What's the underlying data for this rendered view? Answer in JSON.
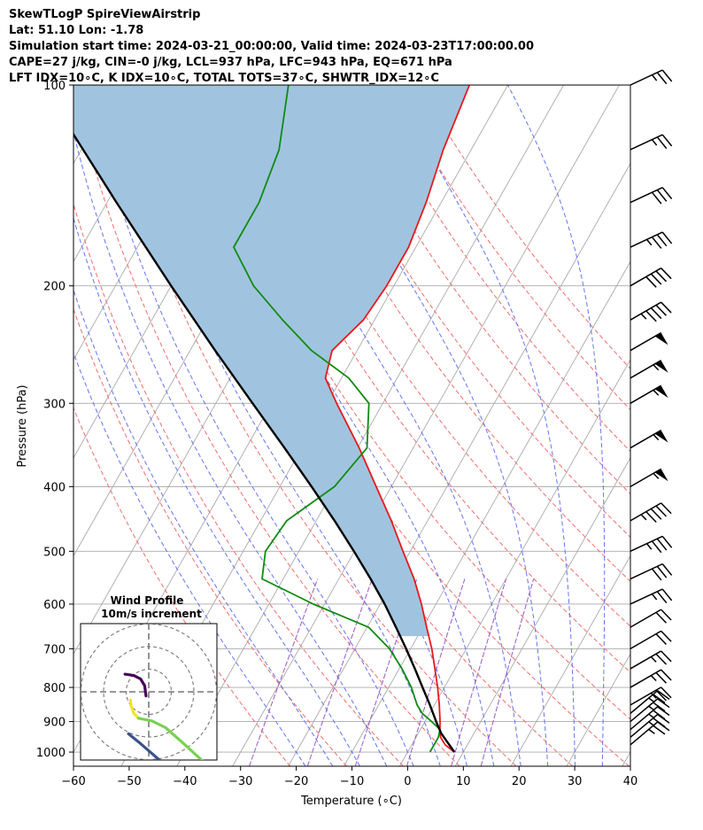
{
  "chart_data": {
    "type": "line",
    "title_lines": [
      "SkewTLogP SpireViewAirstrip",
      "Lat: 51.10   Lon: -1.78",
      "Simulation start time: 2024-03-21_00:00:00, Valid time: 2024-03-23T17:00:00.00",
      "CAPE=27 j/kg, CIN=-0 j/kg, LCL=937 hPa, LFC=943 hPa, EQ=671 hPa",
      "LFT IDX=10∘C, K IDX=10∘C, TOTAL TOTS=37∘C, SHWTR_IDX=12∘C"
    ],
    "xlabel": "Temperature (∘C)",
    "ylabel": "Pressure (hPa)",
    "xlim": [
      -60,
      40
    ],
    "ylim": [
      1050,
      100
    ],
    "x_ticks": [
      "−60",
      "−50",
      "−40",
      "−30",
      "−20",
      "−10",
      "0",
      "10",
      "20",
      "30",
      "40"
    ],
    "x_tick_values": [
      -60,
      -50,
      -40,
      -30,
      -20,
      -10,
      0,
      10,
      20,
      30,
      40
    ],
    "y_ticks": [
      "100",
      "200",
      "300",
      "400",
      "500",
      "600",
      "700",
      "800",
      "900",
      "1000"
    ],
    "y_tick_values": [
      100,
      200,
      300,
      400,
      500,
      600,
      700,
      800,
      900,
      1000
    ],
    "skew_c_per_log_decade": 68,
    "series": [
      {
        "name": "Temperature",
        "color": "#e8191c",
        "pressure": [
          1000,
          975,
          950,
          925,
          900,
          850,
          800,
          750,
          700,
          650,
          600,
          550,
          500,
          450,
          400,
          350,
          300,
          275,
          250,
          225,
          200,
          175,
          150,
          125,
          100
        ],
        "temperature": [
          8.4,
          6.0,
          4.4,
          3.5,
          2.7,
          0.9,
          -1.2,
          -3.6,
          -6.2,
          -9.3,
          -12.6,
          -16.5,
          -21.3,
          -26.5,
          -32.7,
          -39.7,
          -48.3,
          -52.9,
          -54.5,
          -52.0,
          -51.3,
          -51.3,
          -52.7,
          -55.0,
          -56.9
        ]
      },
      {
        "name": "Dewpoint",
        "color": "#118a11",
        "pressure": [
          1000,
          975,
          950,
          925,
          900,
          875,
          850,
          800,
          750,
          700,
          650,
          600,
          550,
          500,
          450,
          400,
          350,
          300,
          275,
          250,
          225,
          200,
          175,
          150,
          125,
          100
        ],
        "temperature": [
          4.0,
          4.0,
          4.0,
          3.5,
          1.2,
          -1.3,
          -3.1,
          -5.9,
          -9.5,
          -13.8,
          -19.7,
          -32.0,
          -43.8,
          -46.0,
          -45.3,
          -40.2,
          -38.3,
          -42.5,
          -48.7,
          -58.2,
          -66.5,
          -75.2,
          -82.7,
          -82.7,
          -84.5,
          -89.4
        ]
      },
      {
        "name": "Parcel",
        "color": "#000000",
        "pressure": [
          1000,
          950,
          937,
          900,
          850,
          800,
          750,
          700,
          650,
          600,
          550,
          500,
          450,
          400,
          350,
          300,
          250,
          200,
          150,
          100
        ],
        "temperature": [
          8.4,
          5.0,
          4.1,
          2.0,
          -0.8,
          -3.9,
          -7.2,
          -10.8,
          -14.8,
          -19.2,
          -24.3,
          -30.1,
          -36.7,
          -44.3,
          -53.1,
          -63.4,
          -75.5,
          -90.0,
          -108.3,
          -133.6
        ]
      }
    ],
    "cape_fill_color": "#a0c4df",
    "reference_lines": {
      "isotherms_c": [
        -150,
        -140,
        -130,
        -120,
        -110,
        -100,
        -90,
        -80,
        -70,
        -60,
        -50,
        -40,
        -30,
        -20,
        -10,
        0,
        10,
        20,
        30,
        40
      ],
      "dry_adiabats_theta_k": [
        250,
        260,
        270,
        280,
        290,
        300,
        310,
        320,
        330,
        340,
        350,
        360,
        370,
        380,
        390,
        400
      ],
      "moist_adiabats_start_c": [
        -20,
        -15,
        -10,
        -5,
        0,
        5,
        10,
        15,
        20,
        25,
        30,
        35
      ],
      "isotherm_color": "#aaaaaa",
      "dry_adiabat_color": "#f26d6d",
      "moist_adiabat_color": "#6474f0",
      "mixing_ratio_color": "#9b59c9",
      "mixing_ratio_gkg": [
        0.4,
        1,
        2,
        4,
        7,
        10
      ]
    },
    "wind_barbs": {
      "color": "#000000",
      "pressure": [
        100,
        125,
        150,
        175,
        200,
        225,
        250,
        275,
        300,
        350,
        400,
        450,
        500,
        550,
        600,
        650,
        700,
        750,
        800,
        850,
        875,
        900,
        925,
        950,
        975
      ],
      "speed_kt": [
        25,
        25,
        30,
        35,
        40,
        45,
        50,
        55,
        55,
        55,
        55,
        45,
        35,
        30,
        25,
        20,
        20,
        25,
        25,
        25,
        25,
        25,
        25,
        25,
        25
      ],
      "direction_deg": [
        245,
        245,
        245,
        245,
        240,
        240,
        240,
        240,
        240,
        240,
        240,
        240,
        245,
        245,
        245,
        240,
        240,
        240,
        240,
        240,
        230,
        230,
        230,
        230,
        230
      ]
    },
    "inset": {
      "title": "Wind Profile",
      "subtitle": "10m/s increment",
      "rings_ms": [
        10,
        20,
        30
      ],
      "hodograph_segments": [
        {
          "color": "#440154",
          "u": [
            -3.5,
            -2.2,
            -1.2,
            -0.6,
            -0.4
          ],
          "v": [
            2.6,
            2.4,
            1.9,
            0.9,
            -0.6
          ]
        },
        {
          "color": "#3b528b",
          "u": [
            -3.0,
            -1.5,
            1.5,
            5.0,
            9.0
          ],
          "v": [
            -6.2,
            -7.4,
            -10.0,
            -12.8,
            -15.8
          ]
        },
        {
          "color": "#f0e621",
          "u": [
            -2.7,
            -2.6,
            -2.2,
            -1.5
          ],
          "v": [
            -1.2,
            -2.1,
            -3.2,
            -3.9
          ]
        },
        {
          "color": "#7ad151",
          "u": [
            -1.5,
            0.5,
            2.5,
            5.0,
            8.5
          ],
          "v": [
            -3.9,
            -4.3,
            -5.3,
            -7.5,
            -10.7
          ]
        }
      ]
    }
  }
}
